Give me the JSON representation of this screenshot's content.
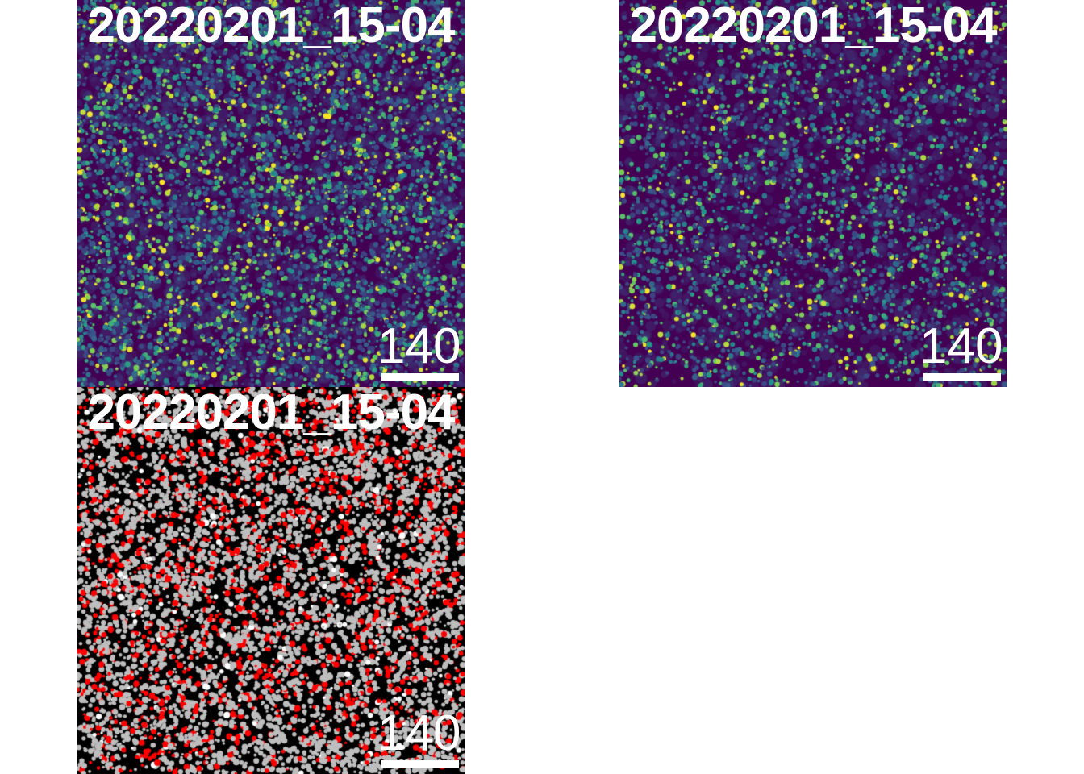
{
  "panels": [
    {
      "title": "20220201_15-04",
      "scalebar_label": "140",
      "style": "viridis-intensity",
      "background": "#440154",
      "density": 1.0
    },
    {
      "title": "20220201_15-04",
      "scalebar_label": "140",
      "style": "viridis-intensity",
      "background": "#440154",
      "density": 0.62
    },
    {
      "title": "20220201_15-04",
      "scalebar_label": "140",
      "style": "categorical-mask",
      "background": "#000000",
      "category_colors": [
        "#bebebe",
        "#ff0000",
        "#ffffff"
      ]
    }
  ],
  "colormap": [
    "#440154",
    "#3b528b",
    "#21918c",
    "#5ec962",
    "#fde725"
  ]
}
